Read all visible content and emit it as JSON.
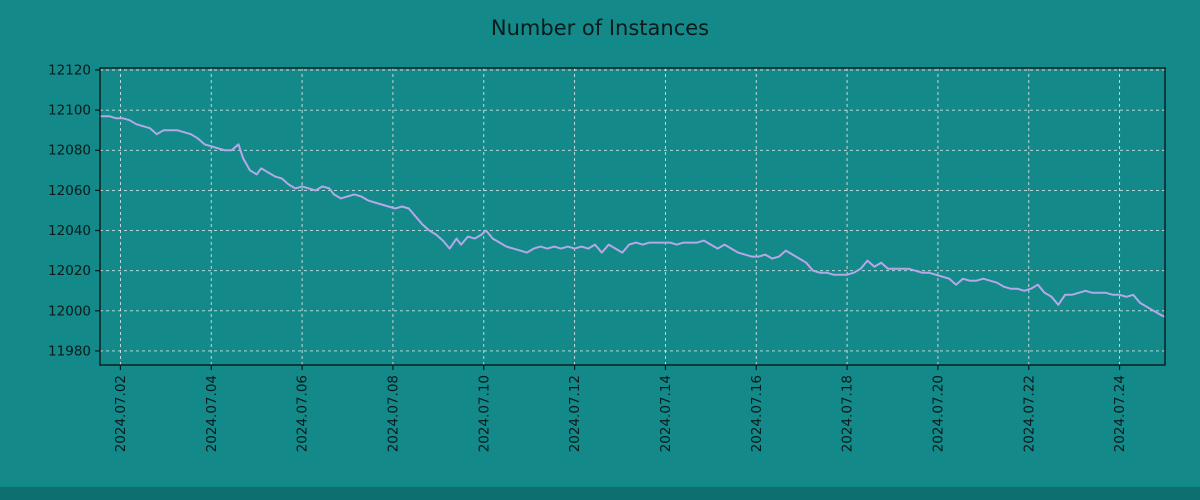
{
  "page": {
    "background": "#138989",
    "footer_color": "#0d6f6f",
    "plot_border_color": "#0b1a1a",
    "grid_color": "rgba(235,245,245,0.85)",
    "text_color": "#0b1a1a"
  },
  "chart_data": {
    "type": "line",
    "title": "Number of Instances",
    "xlabel": "",
    "ylabel": "",
    "grid": true,
    "legend": "none",
    "line_color": "#b5a8e8",
    "line_width": 2,
    "xlim": [
      1.55,
      25.0
    ],
    "ylim": [
      11973,
      12121
    ],
    "y_ticks": [
      11980,
      12000,
      12020,
      12040,
      12060,
      12080,
      12100,
      12120
    ],
    "x_ticks": [
      2,
      4,
      6,
      8,
      10,
      12,
      14,
      16,
      18,
      20,
      22,
      24
    ],
    "x_tick_labels": [
      "2024.07.02",
      "2024.07.04",
      "2024.07.06",
      "2024.07.08",
      "2024.07.10",
      "2024.07.12",
      "2024.07.14",
      "2024.07.16",
      "2024.07.18",
      "2024.07.20",
      "2024.07.22",
      "2024.07.24"
    ],
    "series": [
      {
        "name": "instances",
        "points": [
          [
            1.55,
            12097
          ],
          [
            1.75,
            12097
          ],
          [
            1.9,
            12096
          ],
          [
            2.05,
            12096
          ],
          [
            2.2,
            12095
          ],
          [
            2.35,
            12093
          ],
          [
            2.5,
            12092
          ],
          [
            2.65,
            12091
          ],
          [
            2.8,
            12088
          ],
          [
            2.95,
            12090
          ],
          [
            3.1,
            12090
          ],
          [
            3.25,
            12090
          ],
          [
            3.4,
            12089
          ],
          [
            3.55,
            12088
          ],
          [
            3.7,
            12086
          ],
          [
            3.85,
            12083
          ],
          [
            4.0,
            12082
          ],
          [
            4.15,
            12081
          ],
          [
            4.3,
            12080
          ],
          [
            4.45,
            12080
          ],
          [
            4.6,
            12083
          ],
          [
            4.7,
            12076
          ],
          [
            4.85,
            12070
          ],
          [
            5.0,
            12068
          ],
          [
            5.1,
            12071
          ],
          [
            5.25,
            12069
          ],
          [
            5.4,
            12067
          ],
          [
            5.55,
            12066
          ],
          [
            5.7,
            12063
          ],
          [
            5.85,
            12061
          ],
          [
            6.0,
            12062
          ],
          [
            6.15,
            12061
          ],
          [
            6.3,
            12060
          ],
          [
            6.45,
            12062
          ],
          [
            6.6,
            12061
          ],
          [
            6.7,
            12058
          ],
          [
            6.85,
            12056
          ],
          [
            7.0,
            12057
          ],
          [
            7.15,
            12058
          ],
          [
            7.3,
            12057
          ],
          [
            7.45,
            12055
          ],
          [
            7.6,
            12054
          ],
          [
            7.75,
            12053
          ],
          [
            7.9,
            12052
          ],
          [
            8.05,
            12051
          ],
          [
            8.2,
            12052
          ],
          [
            8.35,
            12051
          ],
          [
            8.5,
            12047
          ],
          [
            8.65,
            12043
          ],
          [
            8.8,
            12040
          ],
          [
            8.95,
            12038
          ],
          [
            9.1,
            12035
          ],
          [
            9.25,
            12031
          ],
          [
            9.4,
            12036
          ],
          [
            9.5,
            12033
          ],
          [
            9.65,
            12037
          ],
          [
            9.8,
            12036
          ],
          [
            9.95,
            12038
          ],
          [
            10.05,
            12040
          ],
          [
            10.2,
            12036
          ],
          [
            10.35,
            12034
          ],
          [
            10.5,
            12032
          ],
          [
            10.65,
            12031
          ],
          [
            10.8,
            12030
          ],
          [
            10.95,
            12029
          ],
          [
            11.1,
            12031
          ],
          [
            11.25,
            12032
          ],
          [
            11.4,
            12031
          ],
          [
            11.55,
            12032
          ],
          [
            11.7,
            12031
          ],
          [
            11.85,
            12032
          ],
          [
            12.0,
            12031
          ],
          [
            12.15,
            12032
          ],
          [
            12.3,
            12031
          ],
          [
            12.45,
            12033
          ],
          [
            12.6,
            12029
          ],
          [
            12.75,
            12033
          ],
          [
            12.9,
            12031
          ],
          [
            13.05,
            12029
          ],
          [
            13.2,
            12033
          ],
          [
            13.35,
            12034
          ],
          [
            13.5,
            12033
          ],
          [
            13.65,
            12034
          ],
          [
            13.8,
            12034
          ],
          [
            13.95,
            12034
          ],
          [
            14.1,
            12034
          ],
          [
            14.25,
            12033
          ],
          [
            14.4,
            12034
          ],
          [
            14.55,
            12034
          ],
          [
            14.7,
            12034
          ],
          [
            14.85,
            12035
          ],
          [
            15.0,
            12033
          ],
          [
            15.15,
            12031
          ],
          [
            15.3,
            12033
          ],
          [
            15.45,
            12031
          ],
          [
            15.6,
            12029
          ],
          [
            15.75,
            12028
          ],
          [
            15.9,
            12027
          ],
          [
            16.05,
            12027
          ],
          [
            16.2,
            12028
          ],
          [
            16.35,
            12026
          ],
          [
            16.5,
            12027
          ],
          [
            16.65,
            12030
          ],
          [
            16.8,
            12028
          ],
          [
            16.95,
            12026
          ],
          [
            17.1,
            12024
          ],
          [
            17.25,
            12020
          ],
          [
            17.4,
            12019
          ],
          [
            17.55,
            12019
          ],
          [
            17.7,
            12018
          ],
          [
            17.85,
            12018
          ],
          [
            18.0,
            12018
          ],
          [
            18.15,
            12019
          ],
          [
            18.3,
            12021
          ],
          [
            18.45,
            12025
          ],
          [
            18.6,
            12022
          ],
          [
            18.75,
            12024
          ],
          [
            18.9,
            12021
          ],
          [
            19.05,
            12021
          ],
          [
            19.2,
            12021
          ],
          [
            19.35,
            12021
          ],
          [
            19.5,
            12020
          ],
          [
            19.65,
            12019
          ],
          [
            19.8,
            12019
          ],
          [
            19.95,
            12018
          ],
          [
            20.1,
            12017
          ],
          [
            20.25,
            12016
          ],
          [
            20.4,
            12013
          ],
          [
            20.55,
            12016
          ],
          [
            20.7,
            12015
          ],
          [
            20.85,
            12015
          ],
          [
            21.0,
            12016
          ],
          [
            21.15,
            12015
          ],
          [
            21.3,
            12014
          ],
          [
            21.45,
            12012
          ],
          [
            21.6,
            12011
          ],
          [
            21.75,
            12011
          ],
          [
            21.9,
            12010
          ],
          [
            22.05,
            12011
          ],
          [
            22.2,
            12013
          ],
          [
            22.35,
            12009
          ],
          [
            22.5,
            12007
          ],
          [
            22.65,
            12003
          ],
          [
            22.8,
            12008
          ],
          [
            22.95,
            12008
          ],
          [
            23.1,
            12009
          ],
          [
            23.25,
            12010
          ],
          [
            23.4,
            12009
          ],
          [
            23.55,
            12009
          ],
          [
            23.7,
            12009
          ],
          [
            23.85,
            12008
          ],
          [
            24.0,
            12008
          ],
          [
            24.15,
            12007
          ],
          [
            24.3,
            12008
          ],
          [
            24.45,
            12004
          ],
          [
            24.6,
            12002
          ],
          [
            24.75,
            12000
          ],
          [
            24.9,
            11998
          ],
          [
            25.0,
            11997
          ]
        ]
      }
    ]
  }
}
